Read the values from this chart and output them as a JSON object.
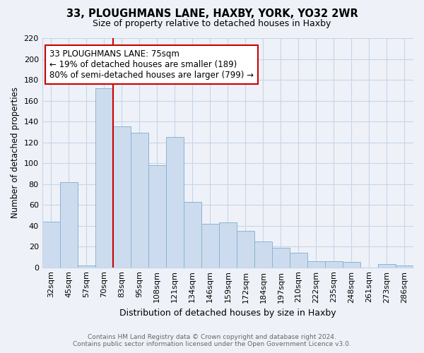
{
  "title1": "33, PLOUGHMANS LANE, HAXBY, YORK, YO32 2WR",
  "title2": "Size of property relative to detached houses in Haxby",
  "xlabel": "Distribution of detached houses by size in Haxby",
  "ylabel": "Number of detached properties",
  "categories": [
    "32sqm",
    "45sqm",
    "57sqm",
    "70sqm",
    "83sqm",
    "95sqm",
    "108sqm",
    "121sqm",
    "134sqm",
    "146sqm",
    "159sqm",
    "172sqm",
    "184sqm",
    "197sqm",
    "210sqm",
    "222sqm",
    "235sqm",
    "248sqm",
    "261sqm",
    "273sqm",
    "286sqm"
  ],
  "values": [
    44,
    82,
    2,
    172,
    135,
    129,
    98,
    125,
    63,
    42,
    43,
    35,
    25,
    19,
    14,
    6,
    6,
    5,
    0,
    3,
    2
  ],
  "bar_color": "#ccdcee",
  "bar_edge_color": "#8ab4d4",
  "vline_color": "#cc0000",
  "annotation_text": "33 PLOUGHMANS LANE: 75sqm\n← 19% of detached houses are smaller (189)\n80% of semi-detached houses are larger (799) →",
  "annotation_box_color": "white",
  "annotation_box_edge": "#cc0000",
  "ylim": [
    0,
    220
  ],
  "yticks": [
    0,
    20,
    40,
    60,
    80,
    100,
    120,
    140,
    160,
    180,
    200,
    220
  ],
  "footer1": "Contains HM Land Registry data © Crown copyright and database right 2024.",
  "footer2": "Contains public sector information licensed under the Open Government Licence v3.0.",
  "bg_color": "#eef2f8",
  "grid_color": "#c8d4e8"
}
